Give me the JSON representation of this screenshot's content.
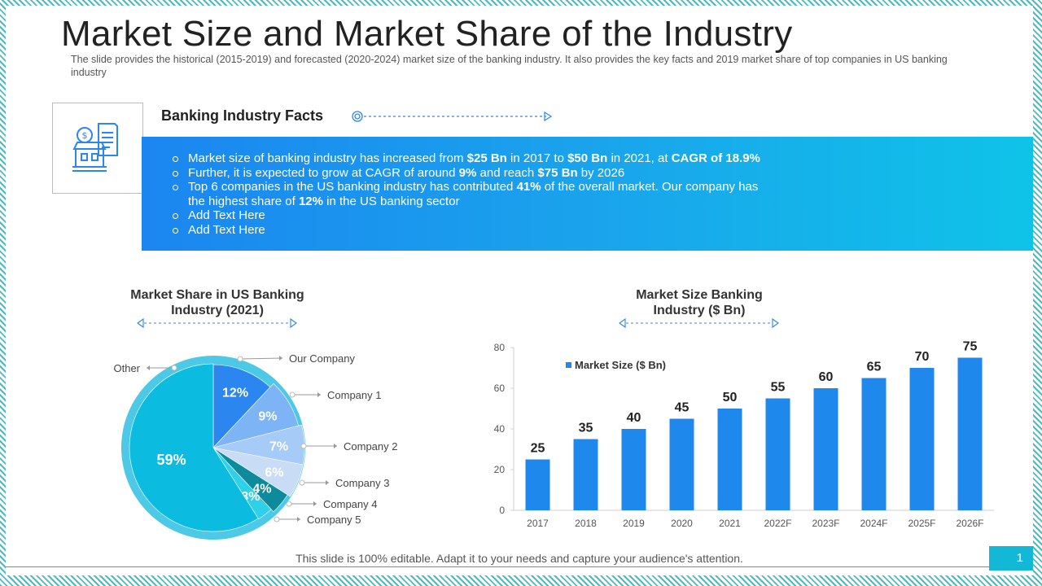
{
  "slide": {
    "title": "Market Size and Market Share of the Industry",
    "subtitle": "The slide provides the historical (2015-2019)  and forecasted  (2020-2024)  market size of the banking industry. It also provides the key facts and 2019 market share of top companies in US banking industry",
    "footer_note": "This slide is 100% editable. Adapt it to your needs and capture your audience's attention.",
    "page_number": "1"
  },
  "icons": {
    "facts_icon": "bank-building-receipt-icon"
  },
  "facts": {
    "title": "Banking Industry Facts",
    "items": [
      {
        "segments": [
          {
            "text": "Market size of banking industry has increased from ",
            "bold": false
          },
          {
            "text": "$25 Bn",
            "bold": true
          },
          {
            "text": " in 2017 to ",
            "bold": false
          },
          {
            "text": "$50 Bn",
            "bold": true
          },
          {
            "text": " in 2021, at ",
            "bold": false
          },
          {
            "text": "CAGR of 18.9%",
            "bold": true
          }
        ]
      },
      {
        "segments": [
          {
            "text": "Further, it is expected to grow at CAGR of around ",
            "bold": false
          },
          {
            "text": "9%",
            "bold": true
          },
          {
            "text": " and reach ",
            "bold": false
          },
          {
            "text": "$75 Bn",
            "bold": true
          },
          {
            "text": " by 2026",
            "bold": false
          }
        ]
      },
      {
        "segments": [
          {
            "text": "Top 6 companies in the US banking industry has contributed ",
            "bold": false
          },
          {
            "text": "41%",
            "bold": true
          },
          {
            "text": " of the overall market. Our company has the highest share of ",
            "bold": false
          },
          {
            "text": "12%",
            "bold": true
          },
          {
            "text": " in the US banking sector",
            "bold": false
          }
        ]
      },
      {
        "segments": [
          {
            "text": "Add Text Here",
            "bold": false
          }
        ]
      },
      {
        "segments": [
          {
            "text": "Add Text Here",
            "bold": false
          }
        ]
      }
    ]
  },
  "colors": {
    "accent": "#12b8d6",
    "bar": "#1e88ec",
    "panel_start": "#1b86f0",
    "panel_end": "#0fc3e8"
  },
  "chart_data": [
    {
      "type": "pie",
      "title": "Market Share in US Banking Industry (2021)",
      "slices": [
        {
          "label": "Our Company",
          "value": 12,
          "display": "12%",
          "color": "#2b86ef"
        },
        {
          "label": "Company 1",
          "value": 9,
          "display": "9%",
          "color": "#7cb4f5"
        },
        {
          "label": "Company 2",
          "value": 7,
          "display": "7%",
          "color": "#a6cbf7"
        },
        {
          "label": "Company 3",
          "value": 6,
          "display": "6%",
          "color": "#c9dcf5"
        },
        {
          "label": "Company 4",
          "value": 4,
          "display": "4%",
          "color": "#0d8a9c"
        },
        {
          "label": "Company 5",
          "value": 3,
          "display": "3%",
          "color": "#2ed0ea"
        },
        {
          "label": "Other",
          "value": 59,
          "display": "59%",
          "color": "#0bbce0"
        }
      ]
    },
    {
      "type": "bar",
      "title": "Market Size Banking Industry ($ Bn)",
      "categories": [
        "2017",
        "2018",
        "2019",
        "2020",
        "2021",
        "2022F",
        "2023F",
        "2024F",
        "2025F",
        "2026F"
      ],
      "series": [
        {
          "name": "Market Size ($ Bn)",
          "values": [
            25,
            35,
            40,
            45,
            50,
            55,
            60,
            65,
            70,
            75
          ]
        }
      ],
      "ylim": [
        0,
        80
      ],
      "yticks": [
        0,
        20,
        40,
        60,
        80
      ],
      "legend": "top-left",
      "grid": false
    }
  ]
}
